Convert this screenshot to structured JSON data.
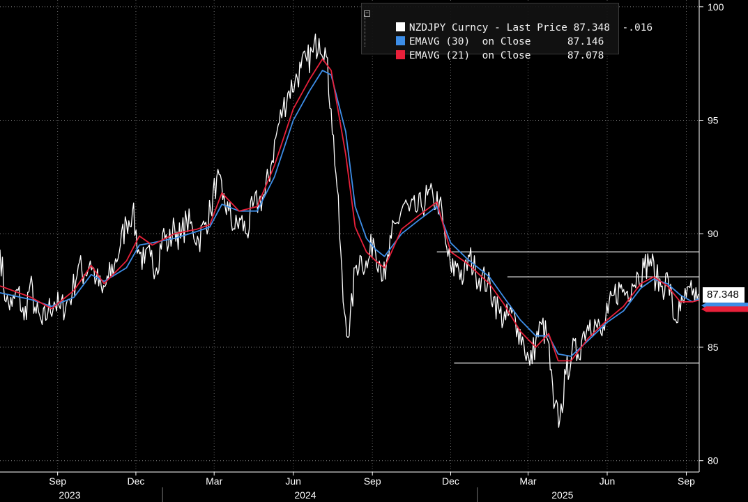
{
  "colors": {
    "background": "#000000",
    "price": "#ffffff",
    "ema30": "#3d8ee8",
    "ema21": "#e8203a",
    "grid": "#bdbdbd",
    "axis_text": "#ffffff"
  },
  "legend": {
    "price_label": "NZDJPY Curncy - Last Price",
    "price_value": "87.348",
    "price_change": "-.016",
    "ema30_label": "EMAVG (30)  on Close",
    "ema30_value": "87.146",
    "ema21_label": "EMAVG (21)  on Close",
    "ema21_value": "87.078"
  },
  "last_price_badge": "87.348",
  "chart_data": {
    "type": "line",
    "title": "",
    "xlabel": "",
    "ylabel": "",
    "x_range": [
      "2023-06-26",
      "2025-09-16"
    ],
    "ylim": [
      79.5,
      100.3
    ],
    "y_ticks": [
      80,
      85,
      90,
      95,
      100
    ],
    "y_tick_labels": [
      "80",
      "85",
      "90",
      "95",
      "100"
    ],
    "y_axis_side": "right",
    "grid": "dotted",
    "legend_placement": "top-center",
    "x_month_ticks": [
      {
        "label": "Sep",
        "date": "2023-09-01"
      },
      {
        "label": "Dec",
        "date": "2023-12-01"
      },
      {
        "label": "Mar",
        "date": "2024-03-01"
      },
      {
        "label": "Jun",
        "date": "2024-06-01"
      },
      {
        "label": "Sep",
        "date": "2024-09-01"
      },
      {
        "label": "Dec",
        "date": "2024-12-01"
      },
      {
        "label": "Mar",
        "date": "2025-03-01"
      },
      {
        "label": "Jun",
        "date": "2025-06-01"
      },
      {
        "label": "Sep",
        "date": "2025-09-01"
      }
    ],
    "x_year_labels": [
      {
        "label": "2023",
        "date": "2023-09-15"
      },
      {
        "label": "2024",
        "date": "2024-06-15"
      },
      {
        "label": "2025",
        "date": "2025-04-10"
      }
    ],
    "x_year_boundaries": [
      "2024-01-01",
      "2025-01-01"
    ],
    "series": [
      {
        "name": "NZDJPY Curncy - Last Price",
        "color": "#ffffff",
        "x": [
          "2023-06-26",
          "2023-07-03",
          "2023-07-10",
          "2023-07-17",
          "2023-07-24",
          "2023-07-31",
          "2023-08-07",
          "2023-08-14",
          "2023-08-21",
          "2023-08-28",
          "2023-09-04",
          "2023-09-11",
          "2023-09-18",
          "2023-09-25",
          "2023-10-02",
          "2023-10-09",
          "2023-10-16",
          "2023-10-23",
          "2023-10-30",
          "2023-11-06",
          "2023-11-13",
          "2023-11-20",
          "2023-11-27",
          "2023-12-04",
          "2023-12-11",
          "2023-12-18",
          "2023-12-25",
          "2024-01-01",
          "2024-01-08",
          "2024-01-15",
          "2024-01-22",
          "2024-01-29",
          "2024-02-05",
          "2024-02-12",
          "2024-02-19",
          "2024-02-26",
          "2024-03-04",
          "2024-03-11",
          "2024-03-18",
          "2024-03-25",
          "2024-04-01",
          "2024-04-08",
          "2024-04-15",
          "2024-04-22",
          "2024-04-29",
          "2024-05-06",
          "2024-05-13",
          "2024-05-20",
          "2024-05-27",
          "2024-06-03",
          "2024-06-10",
          "2024-06-17",
          "2024-06-24",
          "2024-07-01",
          "2024-07-08",
          "2024-07-15",
          "2024-07-22",
          "2024-07-29",
          "2024-08-05",
          "2024-08-12",
          "2024-08-19",
          "2024-08-26",
          "2024-09-02",
          "2024-09-09",
          "2024-09-16",
          "2024-09-23",
          "2024-09-30",
          "2024-10-07",
          "2024-10-14",
          "2024-10-21",
          "2024-10-28",
          "2024-11-04",
          "2024-11-11",
          "2024-11-18",
          "2024-11-25",
          "2024-12-02",
          "2024-12-09",
          "2024-12-16",
          "2024-12-23",
          "2024-12-30",
          "2025-01-06",
          "2025-01-13",
          "2025-01-20",
          "2025-01-27",
          "2025-02-03",
          "2025-02-10",
          "2025-02-17",
          "2025-02-24",
          "2025-03-03",
          "2025-03-10",
          "2025-03-17",
          "2025-03-24",
          "2025-03-31",
          "2025-04-07",
          "2025-04-14",
          "2025-04-21",
          "2025-04-28",
          "2025-05-05",
          "2025-05-12",
          "2025-05-19",
          "2025-05-26",
          "2025-06-02",
          "2025-06-09",
          "2025-06-16",
          "2025-06-23",
          "2025-06-30",
          "2025-07-07",
          "2025-07-14",
          "2025-07-21",
          "2025-07-28",
          "2025-08-04",
          "2025-08-11",
          "2025-08-18",
          "2025-08-25",
          "2025-09-01",
          "2025-09-08",
          "2025-09-15"
        ],
        "values": [
          89.3,
          87.0,
          86.8,
          87.5,
          86.2,
          87.8,
          86.5,
          86.0,
          86.6,
          87.0,
          86.7,
          86.9,
          87.4,
          88.6,
          88.2,
          88.8,
          88.0,
          87.4,
          88.0,
          88.6,
          89.5,
          90.5,
          91.0,
          89.3,
          88.7,
          89.0,
          88.5,
          90.0,
          89.5,
          90.3,
          89.8,
          90.6,
          90.2,
          89.7,
          90.4,
          91.0,
          92.5,
          91.5,
          91.0,
          90.2,
          90.6,
          90.0,
          91.2,
          91.4,
          91.7,
          93.0,
          94.5,
          95.5,
          96.3,
          96.7,
          97.3,
          97.6,
          98.0,
          98.6,
          98.2,
          95.5,
          92.0,
          87.0,
          85.5,
          88.5,
          89.0,
          88.5,
          89.8,
          88.8,
          88.0,
          89.8,
          90.5,
          91.3,
          91.0,
          91.0,
          91.2,
          91.7,
          91.5,
          91.4,
          89.6,
          88.3,
          88.7,
          88.0,
          89.0,
          88.3,
          88.1,
          87.8,
          87.2,
          86.5,
          86.2,
          86.5,
          85.9,
          85.2,
          84.2,
          85.3,
          86.0,
          85.3,
          82.3,
          81.8,
          83.8,
          84.8,
          84.7,
          85.7,
          86.2,
          86.0,
          85.5,
          86.5,
          87.3,
          87.6,
          87.4,
          87.8,
          88.2,
          88.5,
          88.9,
          88.0,
          87.7,
          88.0,
          86.2,
          86.6,
          87.2,
          87.3,
          87.348
        ]
      },
      {
        "name": "EMAVG (30)  on Close",
        "color": "#3d8ee8",
        "x": [
          "2023-06-26",
          "2023-08-01",
          "2023-08-25",
          "2023-09-20",
          "2023-10-10",
          "2023-10-25",
          "2023-11-20",
          "2023-12-05",
          "2023-12-20",
          "2024-01-15",
          "2024-02-10",
          "2024-02-25",
          "2024-03-10",
          "2024-03-30",
          "2024-04-20",
          "2024-05-10",
          "2024-06-01",
          "2024-06-20",
          "2024-07-05",
          "2024-07-15",
          "2024-08-01",
          "2024-08-12",
          "2024-08-25",
          "2024-09-05",
          "2024-09-15",
          "2024-10-05",
          "2024-10-25",
          "2024-11-15",
          "2024-12-01",
          "2024-12-20",
          "2025-01-15",
          "2025-02-01",
          "2025-02-20",
          "2025-03-10",
          "2025-03-25",
          "2025-04-05",
          "2025-04-20",
          "2025-05-10",
          "2025-06-01",
          "2025-06-20",
          "2025-07-10",
          "2025-07-25",
          "2025-08-10",
          "2025-08-25",
          "2025-09-08",
          "2025-09-16"
        ],
        "values": [
          87.4,
          87.1,
          86.8,
          87.2,
          88.2,
          87.9,
          88.5,
          89.5,
          89.6,
          89.8,
          90.1,
          90.3,
          91.3,
          91.0,
          91.0,
          92.5,
          95.0,
          96.3,
          97.2,
          97.0,
          94.5,
          91.2,
          89.8,
          89.3,
          89.0,
          90.0,
          90.6,
          91.2,
          89.6,
          88.9,
          88.1,
          87.2,
          86.2,
          85.5,
          85.5,
          84.7,
          84.6,
          85.3,
          86.1,
          86.6,
          87.6,
          88.0,
          87.8,
          87.3,
          87.0,
          87.146
        ]
      },
      {
        "name": "EMAVG (21)  on Close",
        "color": "#e8203a",
        "x": [
          "2023-06-26",
          "2023-08-01",
          "2023-08-25",
          "2023-09-20",
          "2023-10-10",
          "2023-10-25",
          "2023-11-20",
          "2023-12-05",
          "2023-12-20",
          "2024-01-15",
          "2024-02-10",
          "2024-02-25",
          "2024-03-10",
          "2024-03-30",
          "2024-04-20",
          "2024-05-10",
          "2024-06-01",
          "2024-06-20",
          "2024-07-05",
          "2024-07-15",
          "2024-08-01",
          "2024-08-12",
          "2024-08-25",
          "2024-09-05",
          "2024-09-15",
          "2024-10-05",
          "2024-10-25",
          "2024-11-15",
          "2024-12-01",
          "2024-12-20",
          "2025-01-15",
          "2025-02-01",
          "2025-02-20",
          "2025-03-10",
          "2025-03-25",
          "2025-04-05",
          "2025-04-20",
          "2025-05-10",
          "2025-06-01",
          "2025-06-20",
          "2025-07-10",
          "2025-07-25",
          "2025-08-10",
          "2025-08-25",
          "2025-09-08",
          "2025-09-16"
        ],
        "values": [
          87.7,
          87.2,
          86.7,
          87.5,
          88.6,
          87.8,
          88.8,
          89.9,
          89.5,
          90.0,
          90.2,
          90.4,
          91.8,
          91.0,
          91.2,
          93.0,
          95.5,
          96.8,
          97.7,
          97.2,
          93.5,
          90.3,
          89.2,
          88.8,
          88.5,
          90.2,
          90.8,
          91.4,
          89.2,
          88.7,
          87.8,
          86.9,
          85.7,
          85.0,
          85.6,
          84.4,
          84.4,
          85.4,
          86.2,
          86.8,
          87.8,
          88.1,
          87.7,
          87.0,
          87.0,
          87.078
        ]
      }
    ],
    "horizontal_lines": [
      {
        "y": 89.2,
        "x_start": "2024-11-15",
        "x_end": "2025-09-16"
      },
      {
        "y": 88.1,
        "x_start": "2025-02-05",
        "x_end": "2025-09-16"
      },
      {
        "y": 84.3,
        "x_start": "2024-12-05",
        "x_end": "2025-09-16"
      }
    ]
  }
}
